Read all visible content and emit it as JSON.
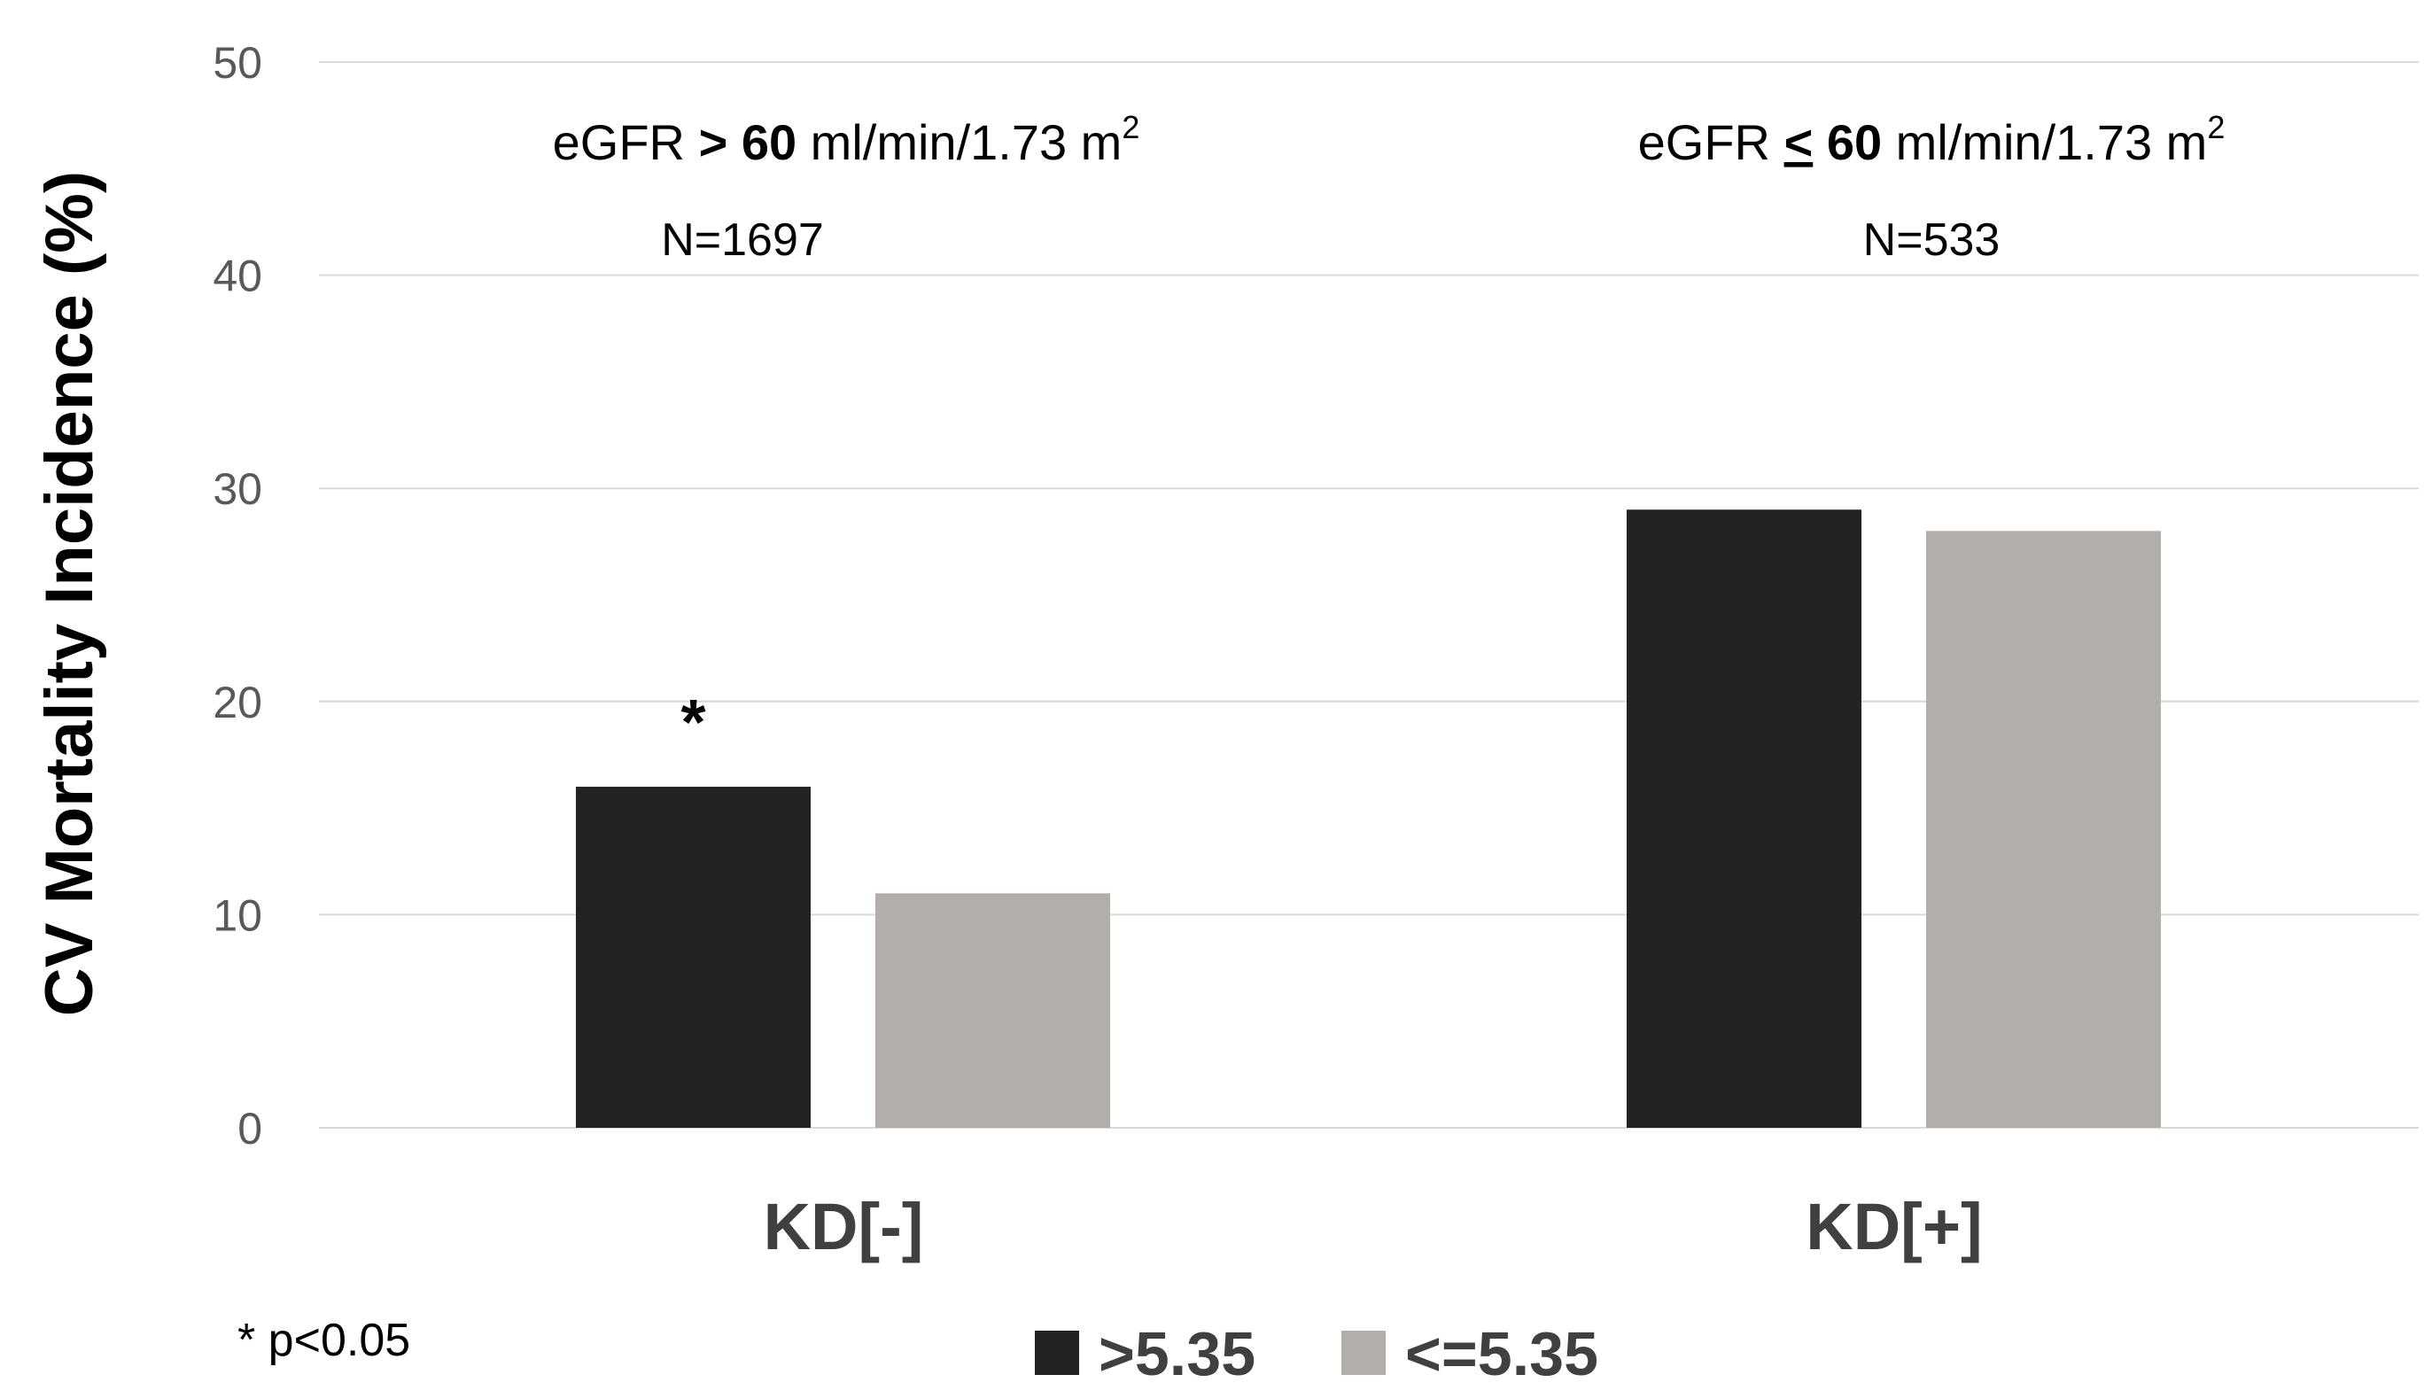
{
  "chart_data": {
    "type": "bar",
    "categories": [
      "KD[-]",
      "KD[+]"
    ],
    "series": [
      {
        "name": ">5.35",
        "values": [
          16,
          29
        ],
        "color": "#232323"
      },
      {
        "name": "<=5.35",
        "values": [
          11,
          28
        ],
        "color": "#b2aeab"
      }
    ],
    "ylabel": "CV Mortality Incidence (%)",
    "xlabel": "",
    "ylim": [
      0,
      50
    ],
    "yticks": [
      0,
      10,
      20,
      30,
      40,
      50
    ],
    "grid": true,
    "legend_position": "bottom",
    "group_annotations": [
      {
        "pre": "eGFR ",
        "op": ">",
        "value": "60",
        "unit": " ml/min/1.73 m",
        "sup": "2",
        "n": "N=1697"
      },
      {
        "pre": "eGFR ",
        "op": "<",
        "value": "60",
        "unit": " ml/min/1.73 m",
        "sup": "2",
        "n": "N=533"
      }
    ],
    "significance_marker": "*",
    "footnote": "* p<0.05"
  }
}
